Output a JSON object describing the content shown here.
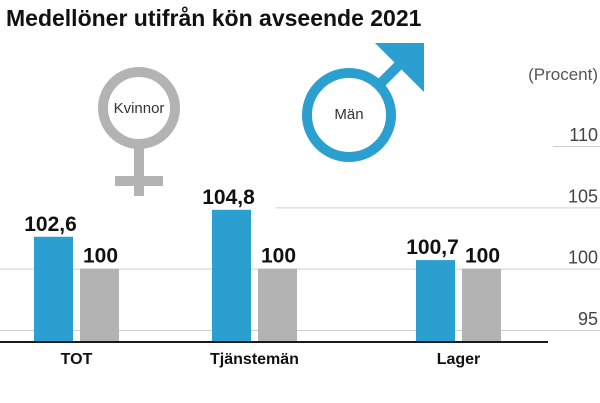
{
  "chart_data": {
    "type": "bar",
    "title": "Medellöner utifrån kön avseende 2021",
    "unit_label": "(Procent)",
    "categories": [
      "TOT",
      "Tjänstemän",
      "Lager"
    ],
    "series": [
      {
        "name": "Kvinnor",
        "values": [
          102.6,
          104.8,
          100.7
        ],
        "labels": [
          "102,6",
          "104,8",
          "100,7"
        ],
        "color": "#2b9fcf"
      },
      {
        "name": "Män",
        "values": [
          100,
          100,
          100
        ],
        "labels": [
          "100",
          "100",
          "100"
        ],
        "color": "#b3b3b3"
      }
    ],
    "yticks": [
      95,
      100,
      105,
      110
    ],
    "ylim": [
      95,
      112
    ],
    "grid": true
  },
  "symbols": {
    "female": {
      "label": "Kvinnor",
      "color": "#b3b3b3"
    },
    "male": {
      "label": "Män",
      "color": "#2b9fcf"
    }
  }
}
